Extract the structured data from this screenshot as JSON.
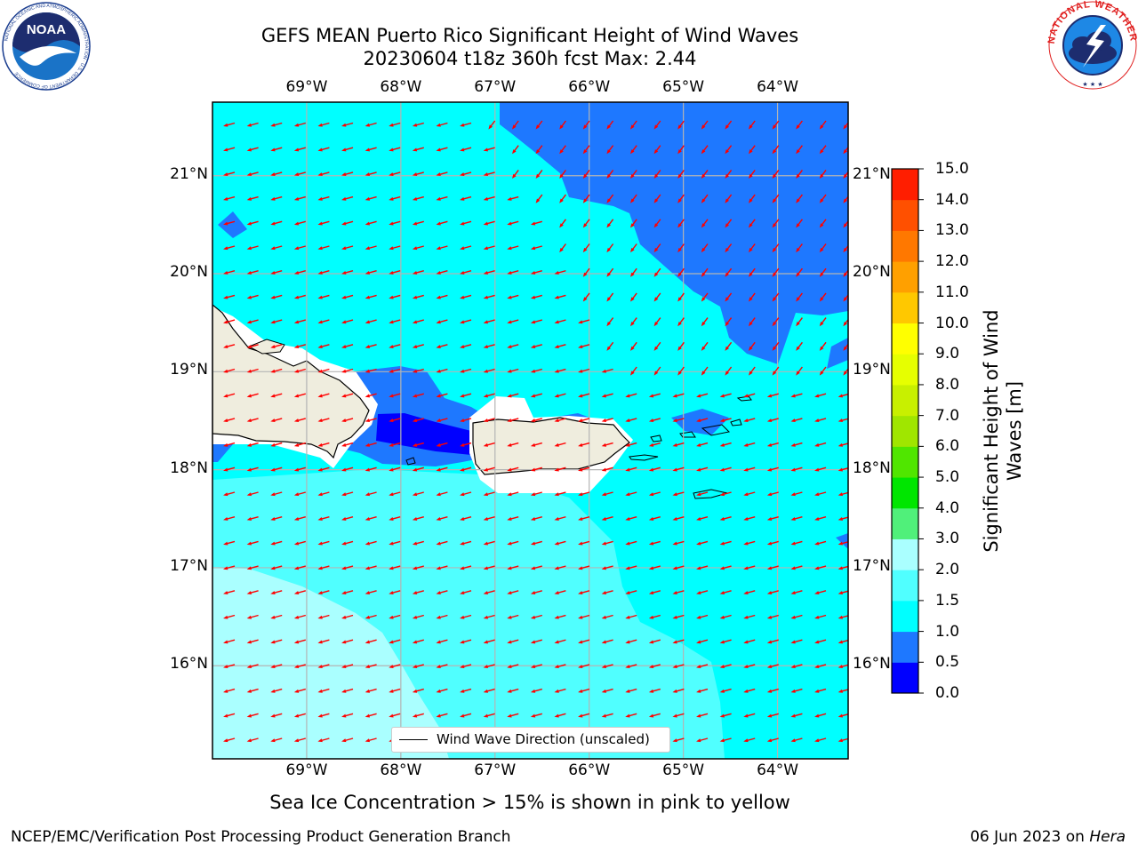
{
  "header": {
    "title_line1": "GEFS MEAN Puerto Rico Significant Height of Wind Waves",
    "title_line2": "20230604 t18z 360h fcst   Max: 2.44"
  },
  "logos": {
    "noaa_text": "NOAA",
    "noaa_ring_text": "NATIONAL OCEANIC AND ATMOSPHERIC ADMINISTRATION · U.S. DEPARTMENT OF COMMERCE",
    "nws_ring_text": "NATIONAL WEATHER SERVICE"
  },
  "map": {
    "lon_ticks": [
      "69°W",
      "68°W",
      "67°W",
      "66°W",
      "65°W",
      "64°W"
    ],
    "lat_ticks": [
      "21°N",
      "20°N",
      "19°N",
      "18°N",
      "17°N",
      "16°N"
    ],
    "lon_values": [
      -69,
      -68,
      -67,
      -66,
      -65,
      -64
    ],
    "lat_values": [
      21,
      20,
      19,
      18,
      17,
      16
    ],
    "extent": {
      "lon_min": -70,
      "lon_max": -63.25,
      "lat_min": 15.05,
      "lat_max": 21.75
    },
    "legend_label": "Wind Wave Direction (unscaled)",
    "arrow_color": "#ff0000",
    "land_color": "#efedde",
    "grid_color": "#b4b4b4"
  },
  "colorbar": {
    "label": "Significant Height of Wind Waves [m]",
    "ticks": [
      "0.0",
      "0.5",
      "1.0",
      "1.5",
      "2.0",
      "3.0",
      "4.0",
      "5.0",
      "6.0",
      "7.0",
      "8.0",
      "9.0",
      "10.0",
      "11.0",
      "12.0",
      "13.0",
      "14.0",
      "15.0"
    ],
    "colors": [
      "#0000ff",
      "#1e78ff",
      "#00ffff",
      "#50ffff",
      "#aaffff",
      "#50f07a",
      "#00e600",
      "#50e600",
      "#a0e600",
      "#c8f000",
      "#e6ff00",
      "#ffff00",
      "#ffc800",
      "#ffa000",
      "#ff7800",
      "#ff5000",
      "#ff1e00"
    ]
  },
  "footer": {
    "sea_ice_note": "Sea Ice Concentration > 15% is shown in pink to yellow",
    "left": "NCEP/EMC/Verification Post Processing Product Generation Branch",
    "right_prefix": "06 Jun 2023 on ",
    "right_host": "Hera"
  }
}
